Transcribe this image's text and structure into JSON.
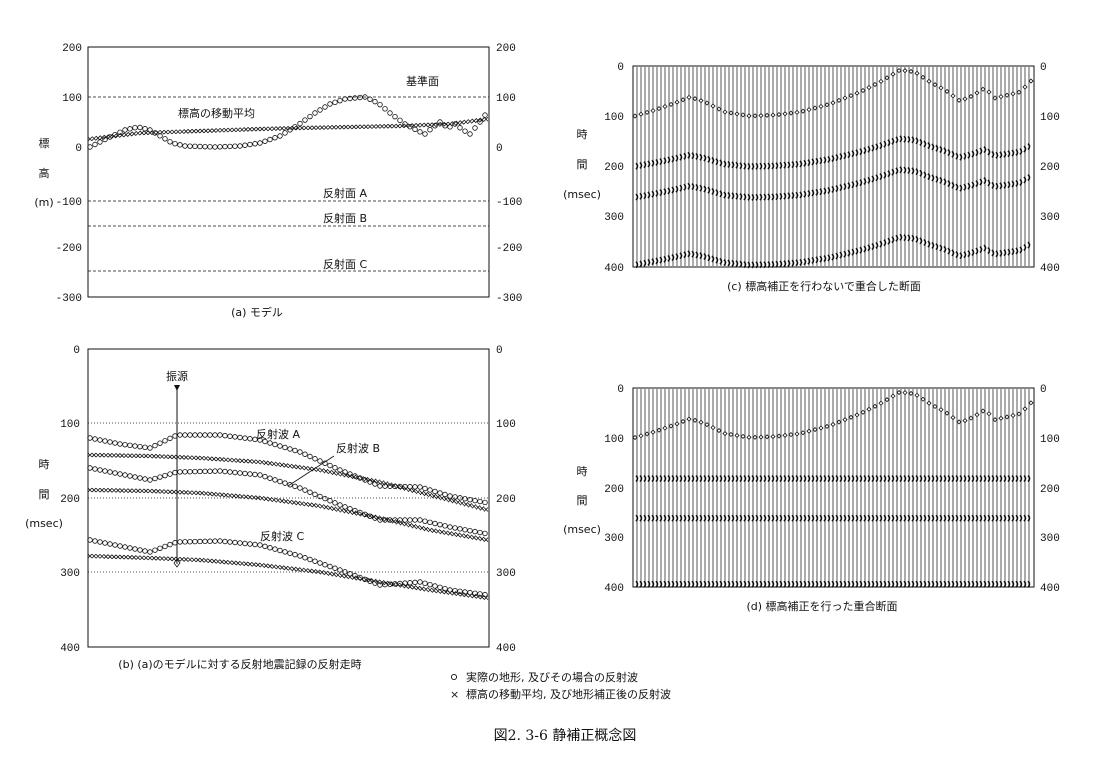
{
  "panel_a": {
    "caption": "(a) モデル",
    "y_title_chars": [
      "標",
      "高",
      "(m)"
    ],
    "ticks": [
      "200",
      "100",
      "0",
      "-100",
      "-200",
      "-300"
    ],
    "annotations": {
      "datum": "基準面",
      "moving_average": "標高の移動平均",
      "reflector_a": "反射面 A",
      "reflector_b": "反射面 B",
      "reflector_c": "反射面 C"
    }
  },
  "panel_b": {
    "caption": "(b) (a)のモデルに対する反射地震記録の反射走時",
    "y_title_chars": [
      "時",
      "間",
      "(msec)"
    ],
    "ticks": [
      "0",
      "100",
      "200",
      "300",
      "400"
    ],
    "annotations": {
      "source": "振源",
      "wave_a": "反射波 A",
      "wave_b": "反射波 B",
      "wave_c": "反射波 C"
    }
  },
  "panel_c": {
    "caption": "(c) 標高補正を行わないで重合した断面",
    "y_title_chars": [
      "時",
      "間",
      "(msec)"
    ],
    "ticks": [
      "0",
      "100",
      "200",
      "300",
      "400"
    ]
  },
  "panel_d": {
    "caption": "(d) 標高補正を行った重合断面",
    "y_title_chars": [
      "時",
      "間",
      "(msec)"
    ],
    "ticks": [
      "0",
      "100",
      "200",
      "300",
      "400"
    ]
  },
  "legend": {
    "circle_symbol": "○",
    "circle_text": "実際の地形, 及びその場合の反射波",
    "cross_symbol": "×",
    "cross_text": "標高の移動平均, 及び地形補正後の反射波"
  },
  "figure_title": "図2. 3-6 静補正概念図"
}
